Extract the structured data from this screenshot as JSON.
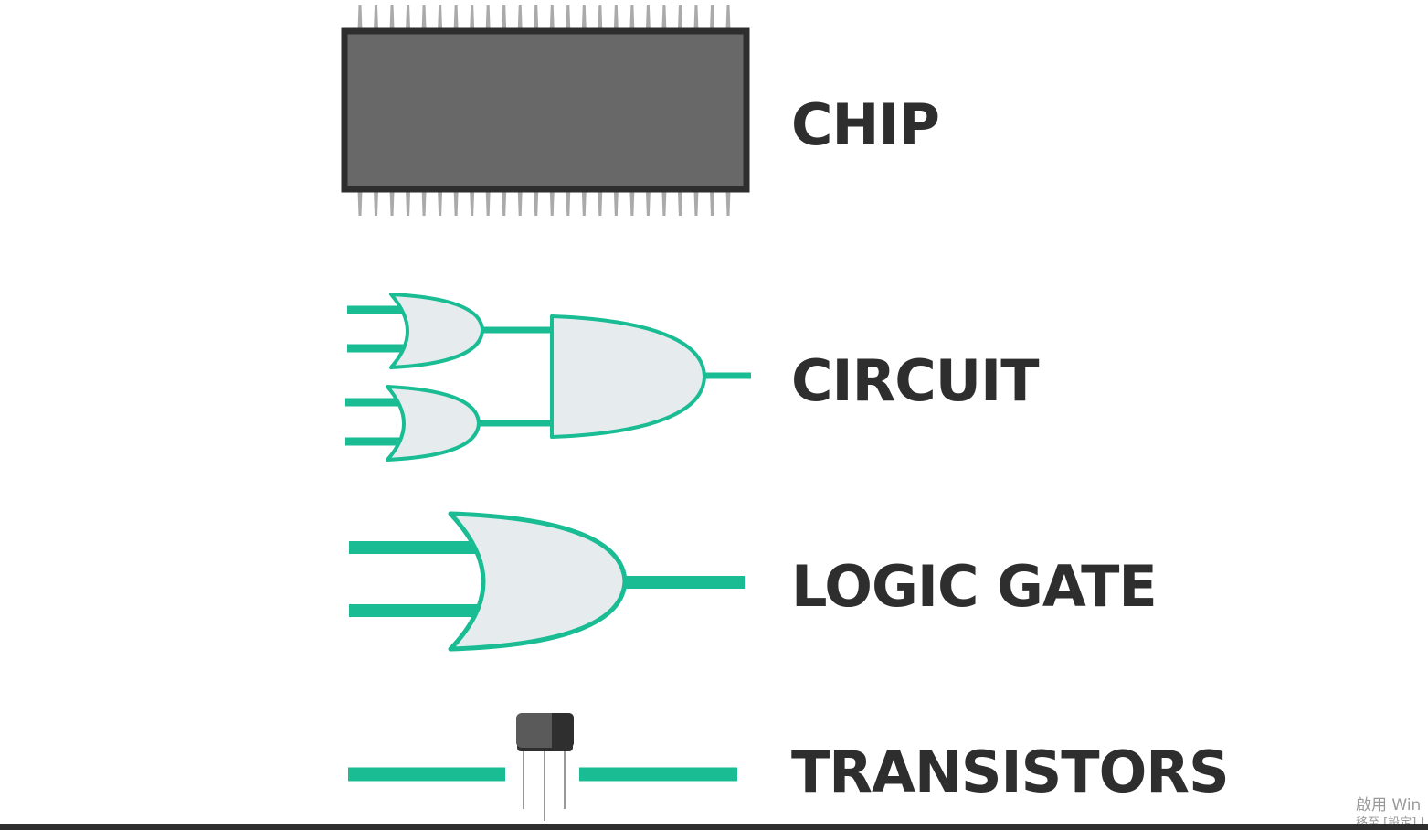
{
  "labels": {
    "chip": "CHIP",
    "circuit": "CIRCUIT",
    "logic_gate": "LOGIC GATE",
    "transistors": "TRANSISTORS"
  },
  "watermark": {
    "line1": "啟用 Win",
    "line2": "移至 [設定] |"
  },
  "colors": {
    "text": "#2e2e2e",
    "wire": "#1abc94",
    "gate_fill": "#e6ecee",
    "chip_body": "#686868",
    "chip_border": "#2e2e2e",
    "chip_pins": "#aaaaaa",
    "transistor_body": "#5a5a5a",
    "transistor_dark": "#2f2f2f",
    "transistor_legs": "#999999"
  }
}
